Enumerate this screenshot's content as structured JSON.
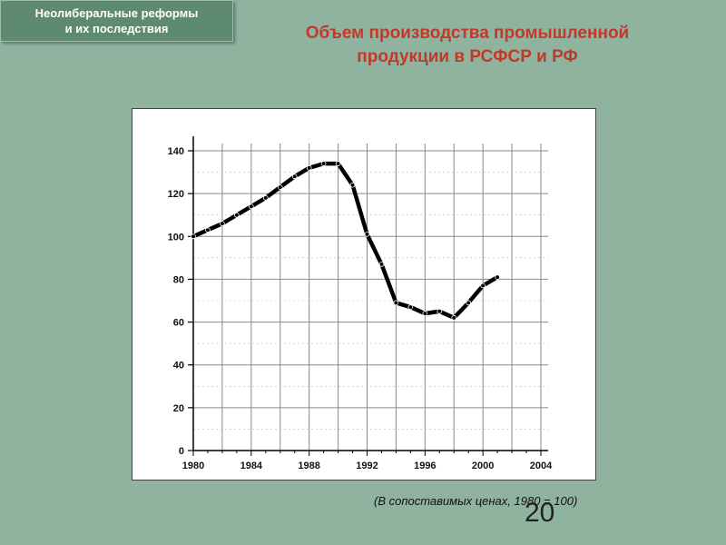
{
  "header": {
    "badge_line1": "Неолиберальные реформы",
    "badge_line2": "и их последствия"
  },
  "slide": {
    "title_line1": "Объем производства промышленной",
    "title_line2": "продукции в РСФСР и РФ",
    "caption": "(В сопоставимых ценах, 1980 = 100)",
    "page_number": "20"
  },
  "chart_data": {
    "type": "line",
    "title": "",
    "xlabel": "",
    "ylabel": "",
    "xlim": [
      1980,
      2004
    ],
    "ylim": [
      0,
      140
    ],
    "xticks": [
      1980,
      1984,
      1988,
      1992,
      1996,
      2000,
      2004
    ],
    "yticks": [
      0,
      20,
      40,
      60,
      80,
      100,
      120,
      140
    ],
    "grid": true,
    "colors": {
      "line": "#000000",
      "grid": "#888888"
    },
    "series": [
      {
        "x": [
          1980,
          1981,
          1982,
          1983,
          1984,
          1985,
          1986,
          1987,
          1988,
          1989,
          1990,
          1991,
          1992,
          1993,
          1994,
          1995,
          1996,
          1997,
          1998,
          1999,
          2000,
          2001
        ],
        "y": [
          100,
          103,
          106,
          110,
          114,
          118,
          123,
          128,
          132,
          134,
          134,
          124,
          101,
          87,
          69,
          67,
          64,
          65,
          62,
          69,
          77,
          81
        ]
      }
    ]
  }
}
